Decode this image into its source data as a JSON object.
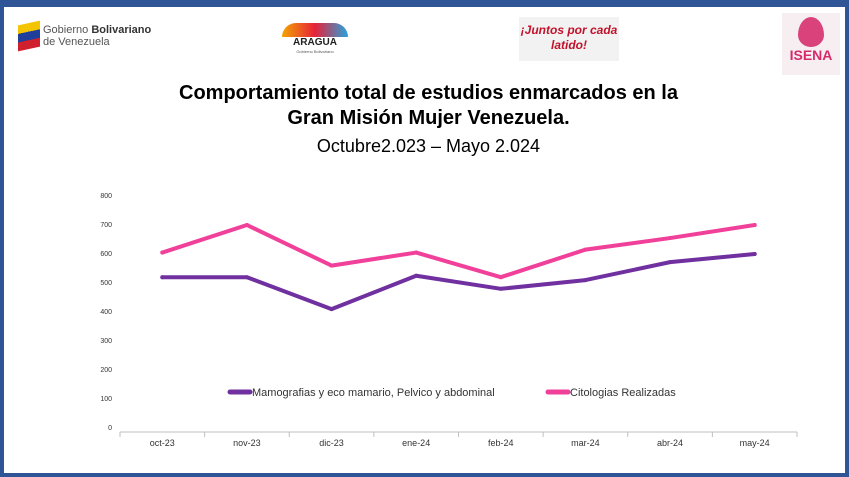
{
  "logos": {
    "gobierno": {
      "line1a": "Gobierno ",
      "line1b": "Bolivariano",
      "line2": "de Venezuela"
    },
    "aragua": {
      "name": "ARAGUA",
      "sub": "Gobierno Bolivariano"
    },
    "juntos": {
      "text": "¡Juntos por cada latido!"
    },
    "isena": {
      "name": "ISENA"
    }
  },
  "title": {
    "line1": "Comportamiento total de estudios enmarcados en la",
    "line2": "Gran Misión Mujer Venezuela.",
    "line3": "Octubre2.023 – Mayo 2.024"
  },
  "chart_data": {
    "type": "line",
    "categories": [
      "oct-23",
      "nov-23",
      "dic-23",
      "ene-24",
      "feb-24",
      "mar-24",
      "abr-24",
      "may-24"
    ],
    "yticks": [
      "0",
      "100",
      "200",
      "300",
      "400",
      "500",
      "600",
      "700",
      "800"
    ],
    "ylim": [
      0,
      800
    ],
    "grid": false,
    "legend_position": "inside-bottom",
    "series": [
      {
        "name": "Mamografias y eco mamario, Pelvico y abdominal",
        "color": "#7030a0",
        "values": [
          520,
          520,
          410,
          525,
          480,
          510,
          572,
          600
        ]
      },
      {
        "name": "Citologias Realizadas",
        "color": "#f0409a",
        "values": [
          605,
          700,
          560,
          605,
          520,
          615,
          655,
          700
        ]
      }
    ]
  }
}
